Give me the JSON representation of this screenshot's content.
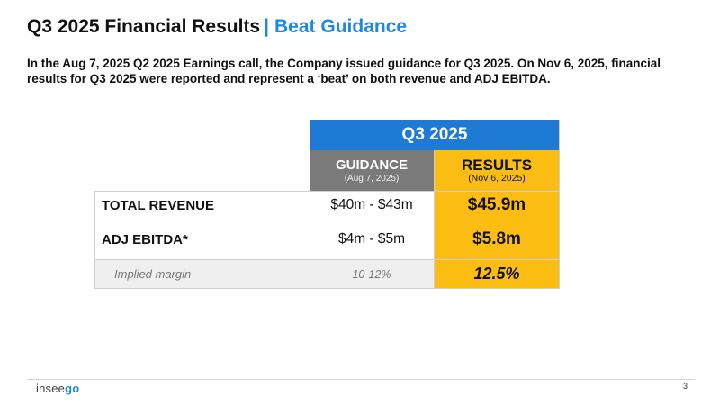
{
  "slide": {
    "title": "Q3 2025 Financial Results",
    "separator": "|",
    "subtitle": "Beat Guidance",
    "intro": "In the Aug 7, 2025 Q2 2025 Earnings call, the Company issued guidance for Q3 2025. On Nov 6, 2025, financial results for Q3 2025 were reported and represent a ‘beat’ on both revenue and ADJ EBITDA."
  },
  "table": {
    "period_header": "Q3 2025",
    "guidance_header": "GUIDANCE",
    "guidance_date": "(Aug 7, 2025)",
    "results_header": "RESULTS",
    "results_date": "(Nov 6, 2025)",
    "rows": [
      {
        "label": "TOTAL REVENUE",
        "guidance": "$40m - $43m",
        "result": "$45.9m"
      },
      {
        "label": "ADJ EBITDA*",
        "guidance": "$4m - $5m",
        "result": "$5.8m"
      },
      {
        "label": "Implied margin",
        "guidance": "10-12%",
        "result": "12.5%"
      }
    ]
  },
  "footer": {
    "logo_prefix": "insee",
    "logo_suffix": "go",
    "page_number": "3"
  },
  "colors": {
    "accent_blue": "#1e7ad4",
    "results_yellow": "#fbbd12",
    "guidance_gray": "#7a7a7a"
  }
}
